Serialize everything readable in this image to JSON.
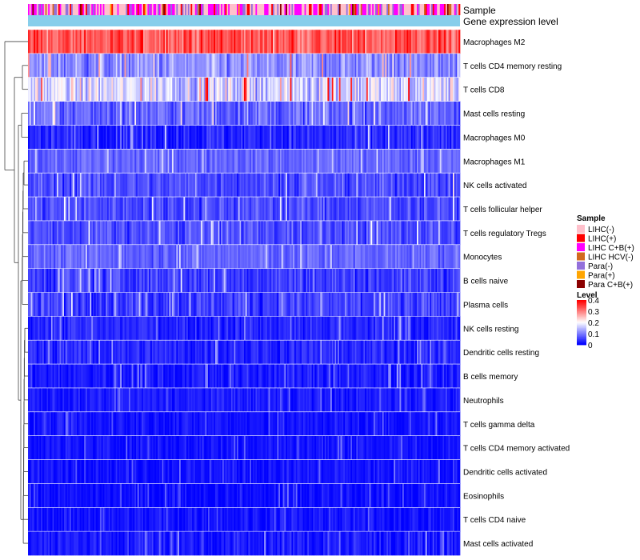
{
  "chart_data": {
    "type": "heatmap",
    "title": "",
    "annotations": [
      {
        "name": "Sample",
        "label": "Sample"
      },
      {
        "name": "Gene expression level",
        "label": "Gene expression level"
      }
    ],
    "rows": [
      {
        "label": "Macrophages M2",
        "mean": 0.33,
        "spread": 0.07
      },
      {
        "label": "T cells CD4 memory resting",
        "mean": 0.11,
        "spread": 0.07
      },
      {
        "label": "T cells CD8",
        "mean": 0.17,
        "spread": 0.09
      },
      {
        "label": "Mast cells resting",
        "mean": 0.08,
        "spread": 0.06
      },
      {
        "label": "Macrophages M0",
        "mean": 0.03,
        "spread": 0.05
      },
      {
        "label": "Macrophages M1",
        "mean": 0.08,
        "spread": 0.04
      },
      {
        "label": "NK cells activated",
        "mean": 0.06,
        "spread": 0.05
      },
      {
        "label": "T cells follicular helper",
        "mean": 0.06,
        "spread": 0.05
      },
      {
        "label": "T cells regulatory  Tregs",
        "mean": 0.06,
        "spread": 0.05
      },
      {
        "label": "Monocytes",
        "mean": 0.08,
        "spread": 0.04
      },
      {
        "label": "B cells naive",
        "mean": 0.05,
        "spread": 0.05
      },
      {
        "label": "Plasma cells",
        "mean": 0.05,
        "spread": 0.05
      },
      {
        "label": "NK cells resting",
        "mean": 0.03,
        "spread": 0.04
      },
      {
        "label": "Dendritic cells resting",
        "mean": 0.03,
        "spread": 0.04
      },
      {
        "label": "B cells memory",
        "mean": 0.02,
        "spread": 0.04
      },
      {
        "label": "Neutrophils",
        "mean": 0.02,
        "spread": 0.03
      },
      {
        "label": "T cells gamma delta",
        "mean": 0.015,
        "spread": 0.03
      },
      {
        "label": "T cells CD4 memory activated",
        "mean": 0.015,
        "spread": 0.03
      },
      {
        "label": "Dendritic cells activated",
        "mean": 0.015,
        "spread": 0.03
      },
      {
        "label": "Eosinophils",
        "mean": 0.01,
        "spread": 0.03
      },
      {
        "label": "T cells CD4 naive",
        "mean": 0.015,
        "spread": 0.03
      },
      {
        "label": "Mast cells activated",
        "mean": 0.02,
        "spread": 0.04
      }
    ],
    "n_samples": 300,
    "sample_groups": [
      {
        "label": "LIHC(-)",
        "color": "#FFC0CB"
      },
      {
        "label": "LIHC(+)",
        "color": "#FF0000"
      },
      {
        "label": "LIHC C+B(+)",
        "color": "#FF00FF"
      },
      {
        "label": "LIHC HCV(-)",
        "color": "#D2691E"
      },
      {
        "label": "Para(-)",
        "color": "#9370DB"
      },
      {
        "label": "Para(+)",
        "color": "#FFA500"
      },
      {
        "label": "Para C+B(+)",
        "color": "#8B0000"
      }
    ],
    "sample_group_weights": [
      0.42,
      0.08,
      0.28,
      0.02,
      0.14,
      0.03,
      0.03
    ],
    "gene_expression_color": "#87CEEB",
    "legend": {
      "position": "right",
      "sample_title": "Sample",
      "level_title": "Level",
      "level_ticks": [
        "0.4",
        "0.3",
        "0.2",
        "0.1",
        "0"
      ],
      "level_values": [
        0.4,
        0.3,
        0.2,
        0.1,
        0
      ]
    },
    "color_scale": {
      "low": "#0000FF",
      "mid": "#FFFFFF",
      "high": "#FF0000",
      "min": 0,
      "mid_value": 0.2,
      "max": 0.4
    }
  }
}
